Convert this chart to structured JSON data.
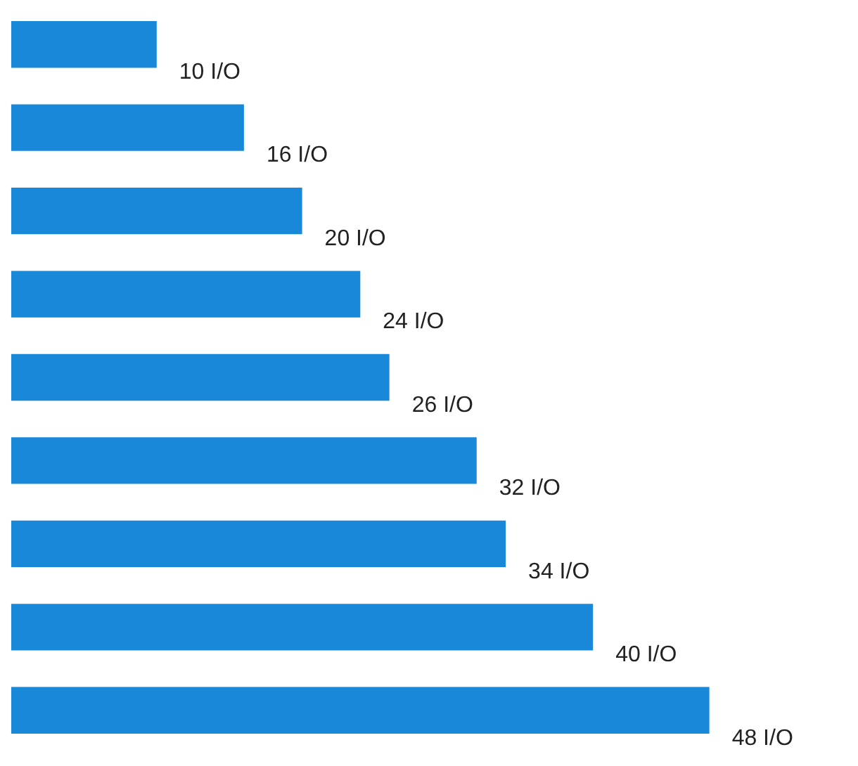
{
  "chart_data": {
    "type": "bar",
    "orientation": "horizontal",
    "categories": [
      null,
      null,
      null,
      null,
      null,
      null,
      null,
      null,
      null
    ],
    "values": [
      10,
      16,
      20,
      24,
      26,
      32,
      34,
      40,
      48
    ],
    "value_labels": [
      "10 I/O",
      "16 I/O",
      "20 I/O",
      "24 I/O",
      "26 I/O",
      "32 I/O",
      "34 I/O",
      "40 I/O",
      "48 I/O"
    ],
    "color": "#1a88d8"
  }
}
